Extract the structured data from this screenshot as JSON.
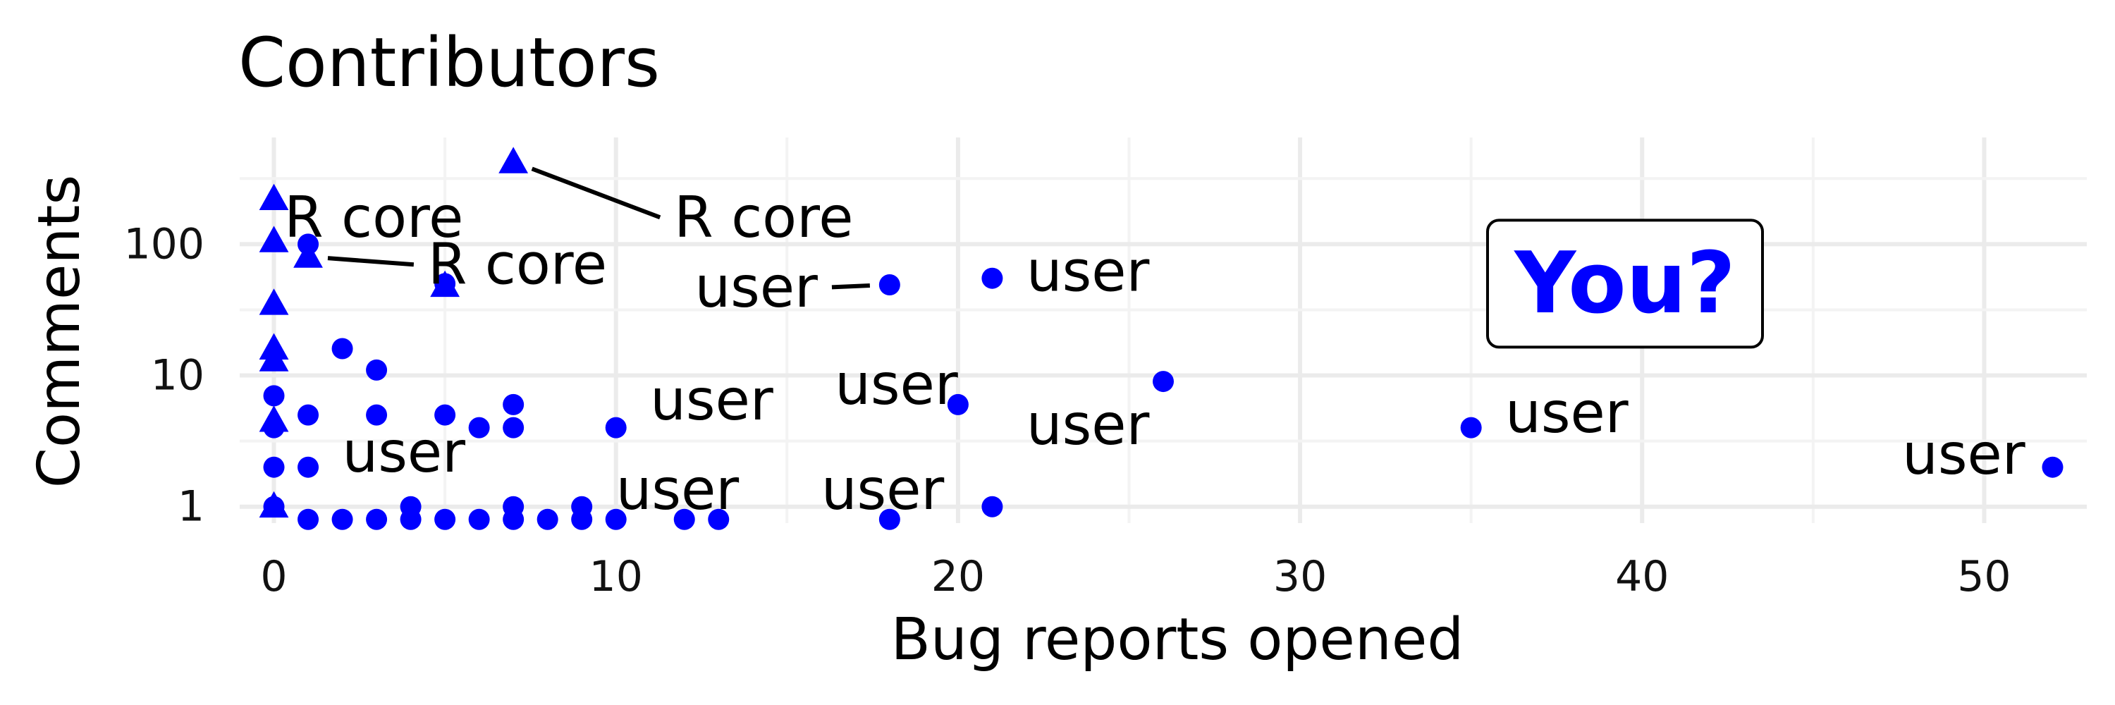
{
  "chart_data": {
    "type": "scatter",
    "title": "Contributors",
    "xlabel": "Bug reports opened",
    "ylabel": "Comments",
    "xlim": [
      -1,
      53
    ],
    "ylim": [
      0.75,
      650
    ],
    "yscale": "log",
    "x_ticks": [
      0,
      10,
      20,
      30,
      40,
      50
    ],
    "x_tick_labels": [
      "0",
      "10",
      "20",
      "30",
      "40",
      "50"
    ],
    "y_ticks": [
      1,
      10,
      100
    ],
    "y_tick_labels": [
      "1",
      "10",
      "100"
    ],
    "grid": true,
    "legend": "none",
    "point_color": "#0000ff",
    "series": [
      {
        "shape": "triangle",
        "points": [
          {
            "x": 0,
            "y": 220
          },
          {
            "x": 0,
            "y": 105
          },
          {
            "x": 0,
            "y": 35
          },
          {
            "x": 0,
            "y": 16
          },
          {
            "x": 0,
            "y": 13
          },
          {
            "x": 0,
            "y": 4.5
          },
          {
            "x": 0,
            "y": 1
          },
          {
            "x": 1,
            "y": 80
          },
          {
            "x": 5,
            "y": 48
          },
          {
            "x": 7,
            "y": 420
          }
        ]
      },
      {
        "shape": "circle",
        "points": [
          {
            "x": 0,
            "y": 7
          },
          {
            "x": 0,
            "y": 4
          },
          {
            "x": 0,
            "y": 2
          },
          {
            "x": 0,
            "y": 1
          },
          {
            "x": 1,
            "y": 100
          },
          {
            "x": 1,
            "y": 5
          },
          {
            "x": 1,
            "y": 2
          },
          {
            "x": 1,
            "y": 0.8
          },
          {
            "x": 2,
            "y": 16
          },
          {
            "x": 2,
            "y": 0.8
          },
          {
            "x": 3,
            "y": 11
          },
          {
            "x": 3,
            "y": 5
          },
          {
            "x": 3,
            "y": 0.8
          },
          {
            "x": 4,
            "y": 1
          },
          {
            "x": 4,
            "y": 0.8
          },
          {
            "x": 5,
            "y": 50
          },
          {
            "x": 5,
            "y": 5
          },
          {
            "x": 5,
            "y": 0.8
          },
          {
            "x": 6,
            "y": 4
          },
          {
            "x": 6,
            "y": 0.8
          },
          {
            "x": 7,
            "y": 6
          },
          {
            "x": 7,
            "y": 4
          },
          {
            "x": 7,
            "y": 1
          },
          {
            "x": 7,
            "y": 0.8
          },
          {
            "x": 8,
            "y": 0.8
          },
          {
            "x": 9,
            "y": 1
          },
          {
            "x": 9,
            "y": 0.8
          },
          {
            "x": 10,
            "y": 4
          },
          {
            "x": 10,
            "y": 0.8
          },
          {
            "x": 12,
            "y": 0.8
          },
          {
            "x": 13,
            "y": 0.8
          },
          {
            "x": 18,
            "y": 49
          },
          {
            "x": 18,
            "y": 0.8
          },
          {
            "x": 20,
            "y": 6
          },
          {
            "x": 21,
            "y": 55
          },
          {
            "x": 21,
            "y": 1
          },
          {
            "x": 26,
            "y": 9
          },
          {
            "x": 35,
            "y": 4
          },
          {
            "x": 52,
            "y": 2
          }
        ]
      }
    ],
    "annotations": [
      {
        "text": "R core",
        "point": {
          "x": 0,
          "y": 220
        },
        "at": {
          "x": 0.3,
          "y": 160
        },
        "anchor": "start",
        "leader": false
      },
      {
        "text": "R core",
        "point": {
          "x": 7,
          "y": 420
        },
        "at": {
          "x": 11.7,
          "y": 160
        },
        "anchor": "start",
        "leader": true
      },
      {
        "text": "R core",
        "point": {
          "x": 1,
          "y": 80
        },
        "at": {
          "x": 4.5,
          "y": 70
        },
        "anchor": "start",
        "leader": true
      },
      {
        "text": "user",
        "point": {
          "x": 18,
          "y": 49
        },
        "at": {
          "x": 15.9,
          "y": 47
        },
        "anchor": "end",
        "leader": true
      },
      {
        "text": "user",
        "point": {
          "x": 21,
          "y": 55
        },
        "at": {
          "x": 22,
          "y": 62
        },
        "anchor": "start",
        "leader": false
      },
      {
        "text": "user",
        "point": {
          "x": 10,
          "y": 4
        },
        "at": {
          "x": 11,
          "y": 6.5
        },
        "anchor": "start",
        "leader": false
      },
      {
        "text": "user",
        "point": {
          "x": 20,
          "y": 6
        },
        "at": {
          "x": 16.4,
          "y": 8.5
        },
        "anchor": "start",
        "leader": false
      },
      {
        "text": "user",
        "point": {
          "x": 35,
          "y": 4
        },
        "at": {
          "x": 36,
          "y": 5.2
        },
        "anchor": "start",
        "leader": false
      },
      {
        "text": "user",
        "point": {
          "x": 26,
          "y": 9
        },
        "at": {
          "x": 22,
          "y": 4.2
        },
        "anchor": "start",
        "leader": false
      },
      {
        "text": "user",
        "point": {
          "x": 1,
          "y": 2
        },
        "at": {
          "x": 2,
          "y": 2.6
        },
        "anchor": "start",
        "leader": false
      },
      {
        "text": "user",
        "point": {
          "x": 52,
          "y": 2
        },
        "at": {
          "x": 51.2,
          "y": 2.5
        },
        "anchor": "end",
        "leader": false
      },
      {
        "text": "user",
        "point": {
          "x": 12,
          "y": 0.8
        },
        "at": {
          "x": 10,
          "y": 1.35
        },
        "anchor": "start",
        "leader": false
      },
      {
        "text": "user",
        "point": {
          "x": 18,
          "y": 0.8
        },
        "at": {
          "x": 16,
          "y": 1.35
        },
        "anchor": "start",
        "leader": false
      }
    ],
    "callout": {
      "text": "You?",
      "at": {
        "x": 39.5,
        "y": 50
      },
      "color": "#0000ff"
    }
  }
}
